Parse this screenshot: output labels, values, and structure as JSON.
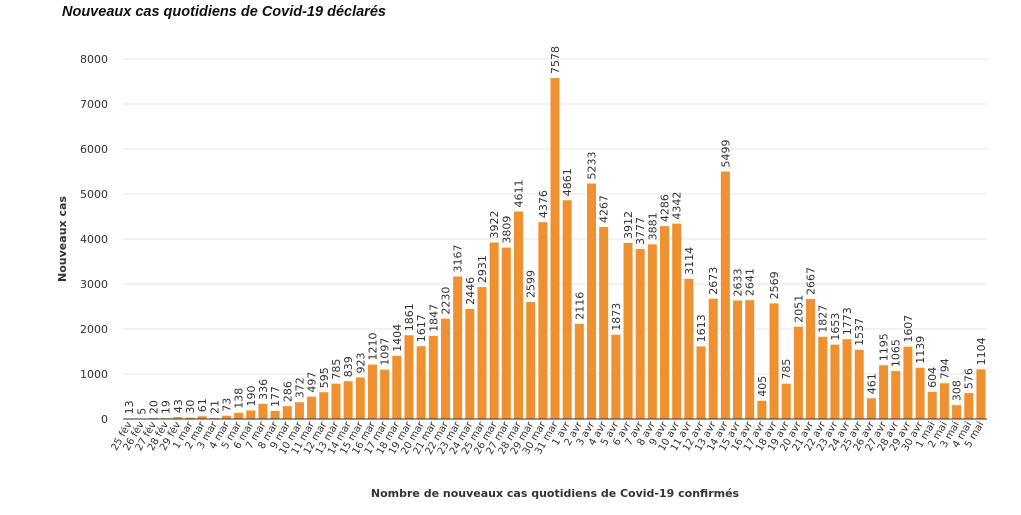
{
  "chart_data": {
    "type": "bar",
    "title": "Nouveaux cas quotidiens de Covid-19 déclarés",
    "xlabel": "Nombre de nouveaux cas quotidiens de Covid-19 confirmés",
    "ylabel": "Nouveaux cas",
    "ylim": [
      0,
      8000
    ],
    "yticks": [
      0,
      1000,
      2000,
      3000,
      4000,
      5000,
      6000,
      7000,
      8000
    ],
    "grid": true,
    "bar_color": "#ef9131",
    "categories": [
      "25 fév",
      "26 fév",
      "27 fév",
      "28 fév",
      "29 fév",
      "1 mar",
      "2 mar",
      "3 mar",
      "4 mar",
      "5 mar",
      "6 mar",
      "7 mar",
      "8 mar",
      "9 mar",
      "10 mar",
      "11 mar",
      "12 mar",
      "13 mar",
      "14 mar",
      "15 mar",
      "16 mar",
      "17 mar",
      "18 mar",
      "19 mar",
      "20 mar",
      "21 mar",
      "22 mar",
      "23 mar",
      "24 mar",
      "25 mar",
      "26 mar",
      "27 mar",
      "28 mar",
      "29 mar",
      "30 mar",
      "31 mar",
      "1 avr",
      "2 avr",
      "3 avr",
      "4 avr",
      "5 avr",
      "6 avr",
      "7 avr",
      "8 avr",
      "9 avr",
      "10 avr",
      "11 avr",
      "12 avr",
      "13 avr",
      "14 avr",
      "15 avr",
      "16 avr",
      "17 avr",
      "18 avr",
      "19 avr",
      "20 avr",
      "21 avr",
      "22 avr",
      "23 avr",
      "24 avr",
      "25 avr",
      "26 avr",
      "27 avr",
      "28 avr",
      "29 avr",
      "30 avr",
      "1 mai",
      "2 mai",
      "3 mai",
      "4 mai",
      "5 mai"
    ],
    "values": [
      13,
      5,
      20,
      19,
      43,
      30,
      61,
      21,
      73,
      138,
      190,
      336,
      177,
      286,
      372,
      497,
      595,
      785,
      839,
      923,
      1210,
      1097,
      1404,
      1861,
      1617,
      1847,
      2230,
      3167,
      2446,
      2931,
      3922,
      3809,
      4611,
      2599,
      4376,
      7578,
      4861,
      2116,
      5233,
      4267,
      1873,
      3912,
      3777,
      3881,
      4286,
      4342,
      3114,
      1613,
      2673,
      5499,
      2633,
      2641,
      405,
      2569,
      785,
      2051,
      2667,
      1827,
      1653,
      1773,
      1537,
      461,
      1195,
      1065,
      1607,
      1139,
      604,
      794,
      308,
      576,
      1104
    ]
  }
}
